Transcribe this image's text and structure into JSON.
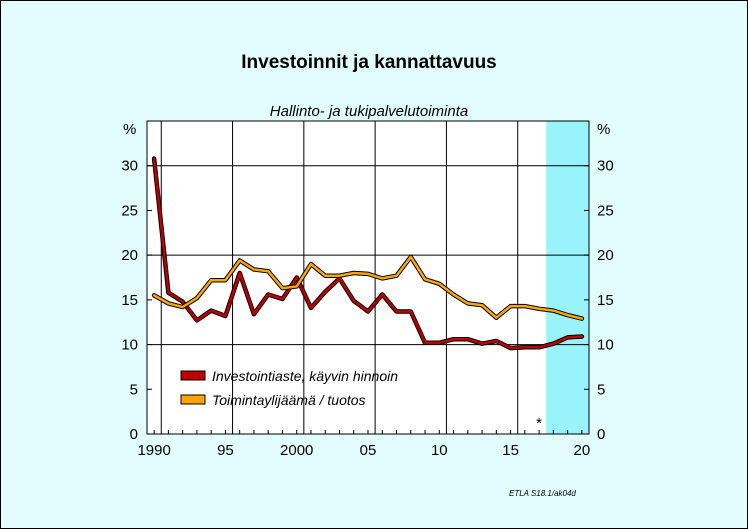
{
  "chart_data": {
    "type": "line",
    "title": "Investoinnit ja kannattavuus",
    "subtitle": "Hallinto- ja tukipalvelutoiminta",
    "ylabel_left": "%",
    "ylabel_right": "%",
    "xlim": [
      1989.5,
      2020.5
    ],
    "ylim": [
      0,
      35
    ],
    "y_ticks": [
      0,
      5,
      10,
      15,
      20,
      25,
      30
    ],
    "x_ticks": [
      {
        "value": 1990,
        "label": "1990"
      },
      {
        "value": 1995,
        "label": "95"
      },
      {
        "value": 2000,
        "label": "2000"
      },
      {
        "value": 2005,
        "label": "05"
      },
      {
        "value": 2010,
        "label": "10"
      },
      {
        "value": 2015,
        "label": "15"
      },
      {
        "value": 2020,
        "label": "20"
      }
    ],
    "x_gridlines": [
      1990.5,
      1995.5,
      2000.5,
      2005.5,
      2010.5,
      2015.5
    ],
    "y_gridlines": [
      10,
      20,
      30
    ],
    "forecast_shading": {
      "from": 2017.5,
      "to": 2020.5,
      "color": "#99f3fb"
    },
    "forecast_marker": {
      "x": 2017,
      "text": "*"
    },
    "x": [
      1990,
      1991,
      1992,
      1993,
      1994,
      1995,
      1996,
      1997,
      1998,
      1999,
      2000,
      2001,
      2002,
      2003,
      2004,
      2005,
      2006,
      2007,
      2008,
      2009,
      2010,
      2011,
      2012,
      2013,
      2014,
      2015,
      2016,
      2017,
      2018,
      2019,
      2020
    ],
    "series": [
      {
        "name": "Investointiaste, käyvin hinnoin",
        "color": "#c00000",
        "values": [
          30.8,
          15.8,
          14.8,
          12.7,
          13.8,
          13.2,
          18.0,
          13.4,
          15.6,
          15.1,
          17.5,
          14.1,
          15.9,
          17.4,
          14.9,
          13.7,
          15.6,
          13.7,
          13.7,
          10.2,
          10.2,
          10.6,
          10.6,
          10.1,
          10.4,
          9.6,
          9.7,
          9.7,
          10.1,
          10.8,
          10.9
        ]
      },
      {
        "name": "Toimintaylijäämä / tuotos",
        "color": "#ffa500",
        "values": [
          15.5,
          14.6,
          14.2,
          15.2,
          17.2,
          17.2,
          19.4,
          18.4,
          18.2,
          16.3,
          16.5,
          19.0,
          17.7,
          17.7,
          18.0,
          17.9,
          17.4,
          17.7,
          19.8,
          17.3,
          16.8,
          15.6,
          14.6,
          14.4,
          13.0,
          14.3,
          14.3,
          14.0,
          13.8,
          13.3,
          12.9
        ]
      }
    ],
    "legend_placement": "lower-left inside plot",
    "credit": "ETLA S18.1/ak04d"
  }
}
